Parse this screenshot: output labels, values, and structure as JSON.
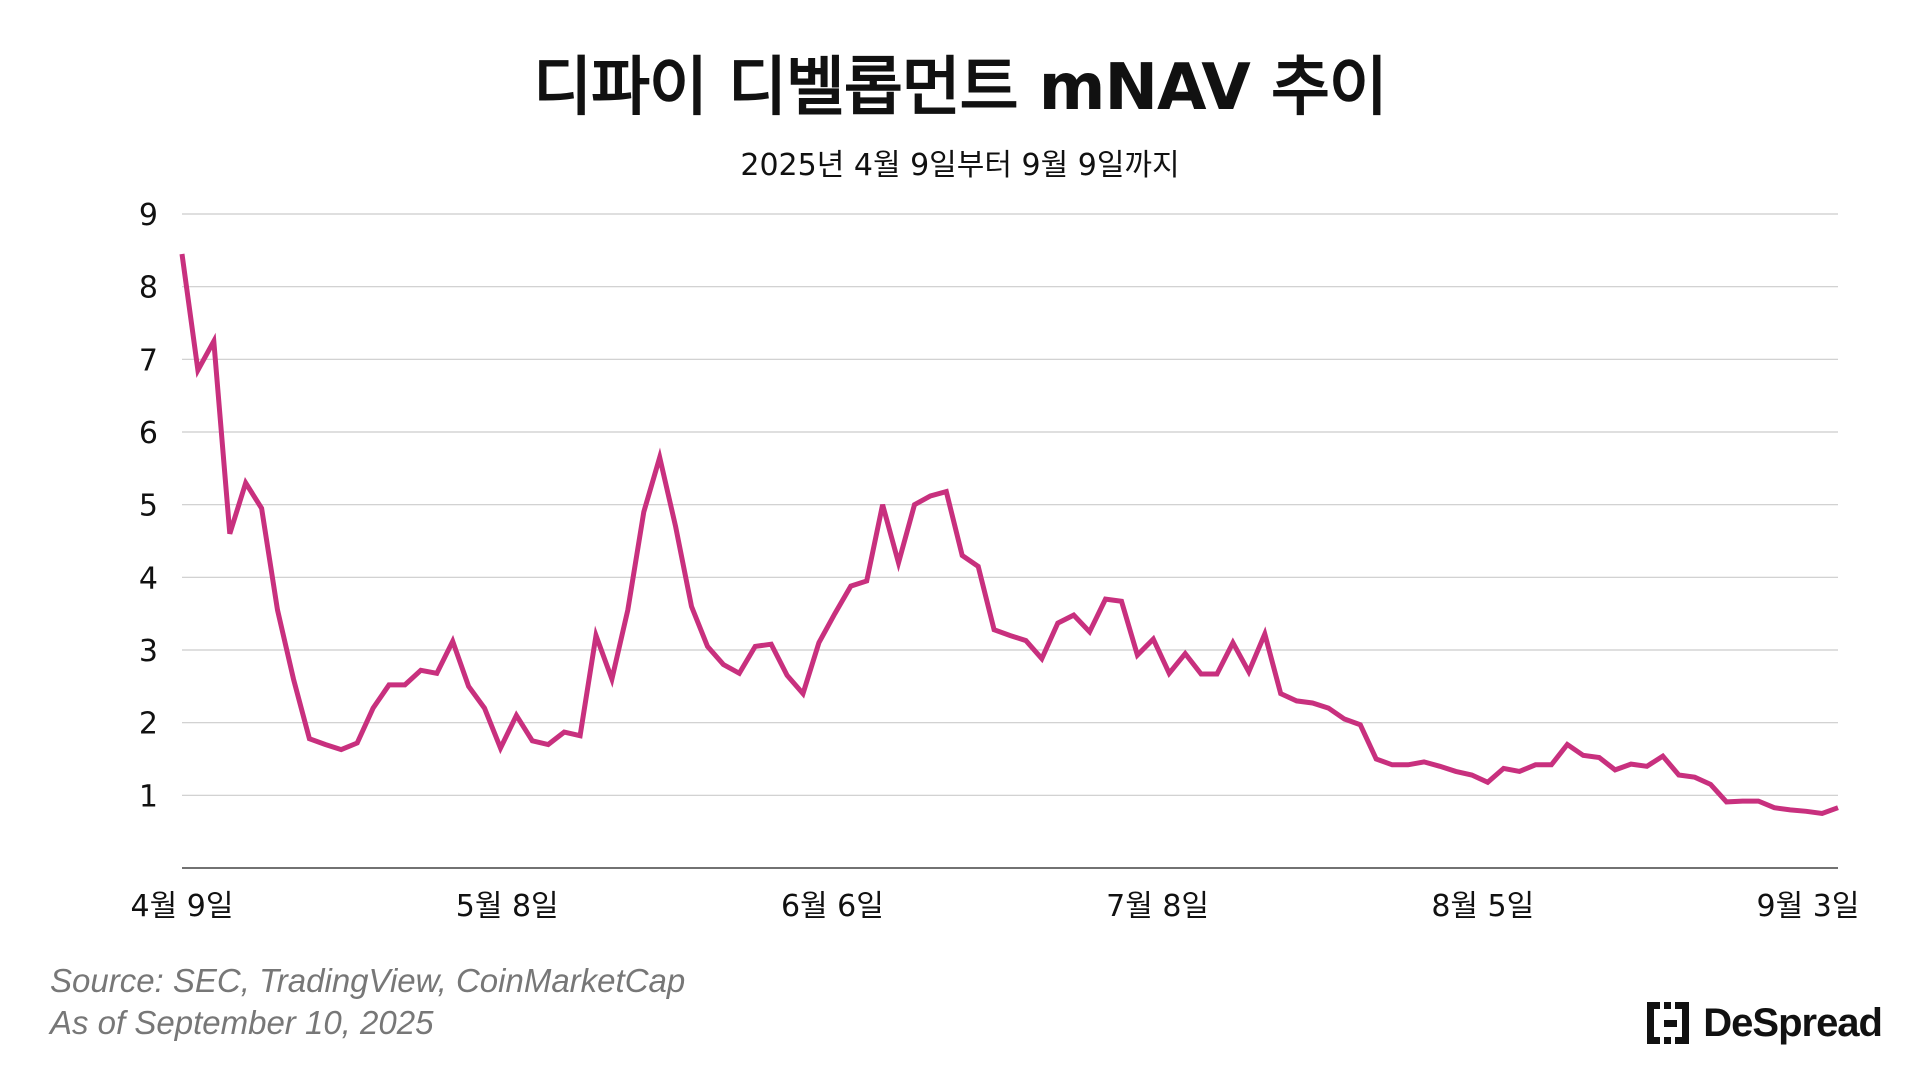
{
  "title": "디파이 디벨롭먼트 mNAV 추이",
  "subtitle": "2025년 4월 9일부터 9월 9일까지",
  "source_line": "Source: SEC, TradingView, CoinMarketCap",
  "as_of_line": "As of September 10, 2025",
  "brand": "DeSpread",
  "colors": {
    "line": "#C8307E",
    "grid": "#CCCCCC",
    "axis": "#444444",
    "text": "#111111",
    "source": "#777777"
  },
  "chart_data": {
    "type": "line",
    "title": "디파이 디벨롭먼트 mNAV 추이",
    "subtitle": "2025년 4월 9일부터 9월 9일까지",
    "xlabel": "",
    "ylabel": "",
    "ylim": [
      0,
      9
    ],
    "yticks": [
      1,
      2,
      3,
      4,
      5,
      6,
      7,
      8,
      9
    ],
    "grid": true,
    "x_tick_labels": [
      "4월 9일",
      "5월 8일",
      "6월 6일",
      "7월 8일",
      "8월 5일",
      "9월 3일"
    ],
    "series": [
      {
        "values": [
          8.45,
          6.85,
          7.25,
          4.6,
          5.3,
          4.95,
          3.55,
          2.6,
          1.78,
          1.7,
          1.63,
          1.72,
          2.2,
          2.52,
          2.52,
          2.72,
          2.68,
          3.12,
          2.5,
          2.2,
          1.65,
          2.1,
          1.75,
          1.7,
          1.87,
          1.82,
          3.2,
          2.6,
          3.55,
          4.9,
          5.65,
          4.7,
          3.6,
          3.05,
          2.8,
          2.68,
          3.05,
          3.08,
          2.65,
          2.4,
          3.1,
          3.5,
          3.88,
          3.95,
          5.0,
          4.2,
          5.0,
          5.12,
          5.18,
          4.3,
          4.15,
          3.28,
          3.2,
          3.13,
          2.88,
          3.37,
          3.48,
          3.25,
          3.7,
          3.67,
          2.93,
          3.15,
          2.68,
          2.95,
          2.67,
          2.67,
          3.1,
          2.7,
          3.22,
          2.4,
          2.3,
          2.27,
          2.2,
          2.05,
          1.97,
          1.5,
          1.42,
          1.42,
          1.46,
          1.4,
          1.33,
          1.28,
          1.18,
          1.37,
          1.33,
          1.42,
          1.42,
          1.7,
          1.55,
          1.52,
          1.35,
          1.43,
          1.4,
          1.54,
          1.28,
          1.25,
          1.15,
          0.91,
          0.92,
          0.92,
          0.83,
          0.8,
          0.78,
          0.75,
          0.83
        ]
      }
    ]
  }
}
